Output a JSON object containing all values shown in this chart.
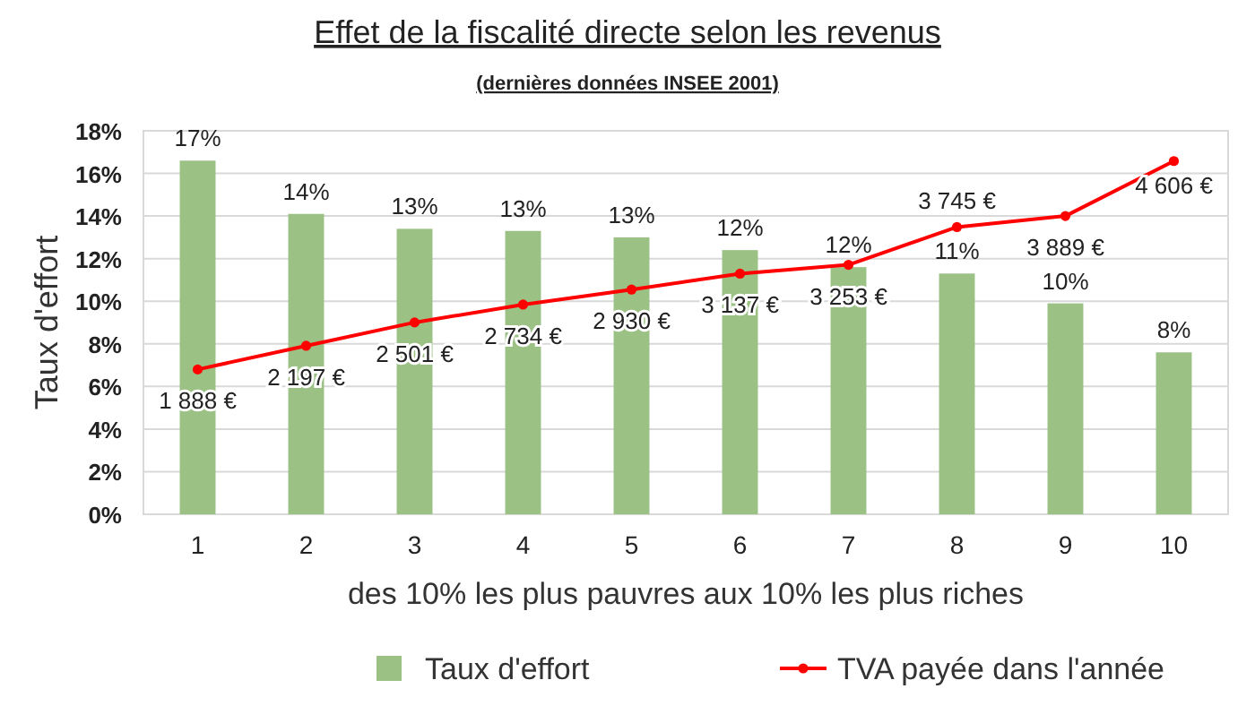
{
  "chart_data": {
    "type": "bar",
    "title": "Effet de la fiscalité directe selon les revenus",
    "subtitle": "(dernières données INSEE 2001)",
    "xlabel": "des 10% les plus pauvres aux 10% les plus riches",
    "ylabel": "Taux d'effort",
    "categories": [
      "1",
      "2",
      "3",
      "4",
      "5",
      "6",
      "7",
      "8",
      "9",
      "10"
    ],
    "series": [
      {
        "name": "Taux d'effort",
        "color": "#9bc184",
        "values": [
          16.6,
          14.1,
          13.4,
          13.3,
          13.0,
          12.4,
          11.6,
          11.3,
          9.9,
          7.6
        ],
        "value_labels": [
          "17%",
          "14%",
          "13%",
          "13%",
          "13%",
          "12%",
          "12%",
          "11%",
          "10%",
          "8%"
        ]
      },
      {
        "name": "TVA payée dans l'année",
        "type": "line",
        "axis": "y2",
        "color": "#ff0000",
        "marker": "circle",
        "values": [
          1888,
          2197,
          2501,
          2734,
          2930,
          3137,
          3253,
          3745,
          3889,
          4606
        ],
        "value_labels": [
          "1 888 €",
          "2 197 €",
          "2 501 €",
          "2 734 €",
          "2 930 €",
          "3 137 €",
          "3 253 €",
          "3 745 €",
          "3 889 €",
          "4 606 €"
        ]
      }
    ],
    "ylim": [
      0,
      18
    ],
    "yticks": [
      {
        "value": 0,
        "label": "0%"
      },
      {
        "value": 2,
        "label": "2%"
      },
      {
        "value": 4,
        "label": "4%"
      },
      {
        "value": 6,
        "label": "6%"
      },
      {
        "value": 8,
        "label": "8%"
      },
      {
        "value": 10,
        "label": "10%"
      },
      {
        "value": 12,
        "label": "12%"
      },
      {
        "value": 14,
        "label": "14%"
      },
      {
        "value": 16,
        "label": "16%"
      },
      {
        "value": 18,
        "label": "18%"
      }
    ],
    "y2lim": [
      0,
      5000
    ],
    "grid": "y",
    "legend": "bottom"
  }
}
